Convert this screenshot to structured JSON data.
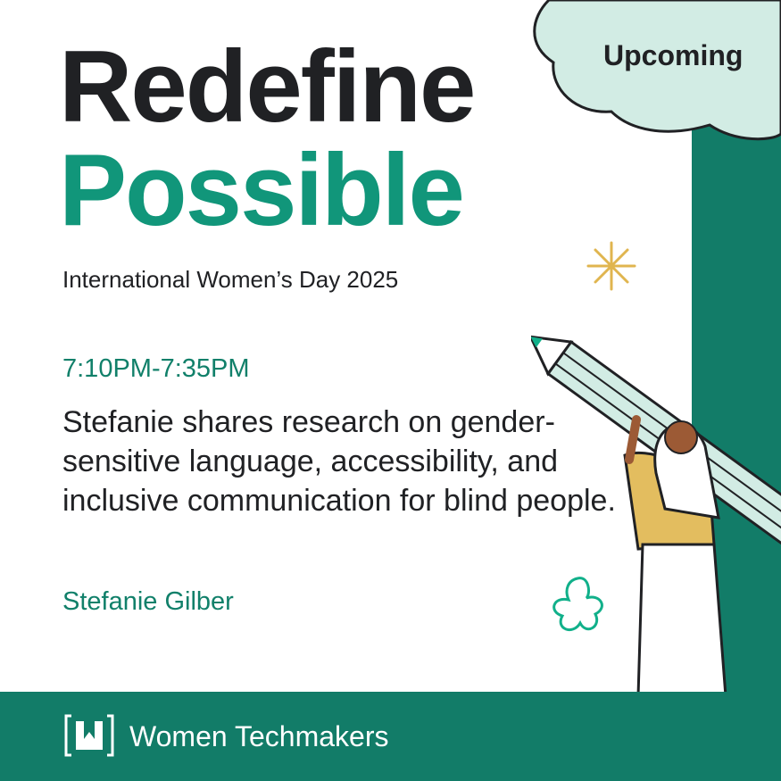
{
  "badge": "Upcoming",
  "title_line1": "Redefine",
  "title_line2": "Possible",
  "subtitle": "International Women’s Day 2025",
  "time": "7:10PM-7:35PM",
  "description": "Stefanie shares research on gender-sensitive language, accessibility, and inclusive communication for blind people.",
  "speaker": "Stefanie Gilber",
  "footer": {
    "brand": "Women Techmakers",
    "logo_icon": "women-techmakers-logo"
  },
  "colors": {
    "brand_green": "#127c68",
    "accent_teal": "#11967a",
    "mint": "#d2ece4",
    "text": "#202124"
  }
}
